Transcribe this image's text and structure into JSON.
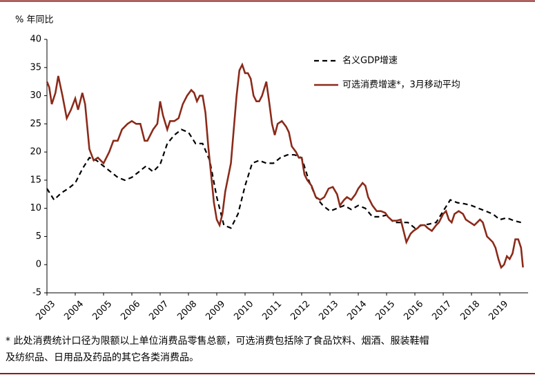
{
  "chart_data": {
    "type": "line",
    "y_label": "% 年同比",
    "xlim": [
      2003,
      2020
    ],
    "ylim": [
      -5,
      40
    ],
    "xticks": [
      2003,
      2004,
      2005,
      2006,
      2007,
      2008,
      2009,
      2010,
      2011,
      2012,
      2013,
      2014,
      2015,
      2016,
      2017,
      2018,
      2019
    ],
    "yticks": [
      -5,
      0,
      5,
      10,
      15,
      20,
      25,
      30,
      35,
      40
    ],
    "grid": false,
    "legend": "top",
    "series": [
      {
        "name": "名义GDP增速",
        "color": "#000000",
        "dash": true,
        "x": [
          2003,
          2003.25,
          2003.5,
          2003.75,
          2004,
          2004.25,
          2004.5,
          2004.75,
          2005,
          2005.25,
          2005.5,
          2005.75,
          2006,
          2006.25,
          2006.5,
          2006.75,
          2007,
          2007.25,
          2007.5,
          2007.75,
          2008,
          2008.25,
          2008.5,
          2008.75,
          2009,
          2009.25,
          2009.5,
          2009.75,
          2010,
          2010.25,
          2010.5,
          2010.75,
          2011,
          2011.25,
          2011.5,
          2011.75,
          2012,
          2012.25,
          2012.5,
          2012.75,
          2013,
          2013.25,
          2013.5,
          2013.75,
          2014,
          2014.25,
          2014.5,
          2014.75,
          2015,
          2015.25,
          2015.5,
          2015.75,
          2016,
          2016.25,
          2016.5,
          2016.75,
          2017,
          2017.25,
          2017.5,
          2017.75,
          2018,
          2018.25,
          2018.5,
          2018.75,
          2019,
          2019.25,
          2019.5,
          2019.75
        ],
        "values": [
          13.5,
          11.5,
          12.7,
          13.5,
          14.5,
          17,
          19,
          18.5,
          17.5,
          16.5,
          15.5,
          15,
          15.5,
          16.5,
          17.5,
          16.5,
          17.8,
          21.5,
          23,
          24,
          23.5,
          21.5,
          21.5,
          18.5,
          12,
          7,
          6.5,
          9,
          14,
          18,
          18.5,
          18,
          18,
          19,
          19.5,
          19.5,
          19,
          15,
          12,
          10.5,
          9.5,
          10,
          10.5,
          9.8,
          10.5,
          10,
          8.5,
          8.5,
          8.8,
          7.5,
          7.5,
          7.5,
          6.5,
          7,
          7.2,
          7.5,
          9.5,
          11.5,
          11,
          10.8,
          10.5,
          10,
          9.5,
          9,
          8,
          8.3,
          7.8,
          7.5
        ]
      },
      {
        "name": "可选消费增速*，3月移动平均",
        "color": "#8b2a1a",
        "dash": false,
        "x": [
          2003,
          2003.08,
          2003.17,
          2003.3,
          2003.4,
          2003.55,
          2003.7,
          2003.85,
          2004,
          2004.1,
          2004.25,
          2004.35,
          2004.5,
          2004.65,
          2004.8,
          2005,
          2005.2,
          2005.35,
          2005.5,
          2005.65,
          2005.85,
          2006,
          2006.15,
          2006.3,
          2006.45,
          2006.55,
          2006.75,
          2006.9,
          2007,
          2007.1,
          2007.25,
          2007.35,
          2007.5,
          2007.65,
          2007.8,
          2007.95,
          2008.1,
          2008.2,
          2008.3,
          2008.4,
          2008.5,
          2008.6,
          2008.7,
          2008.8,
          2008.9,
          2009,
          2009.1,
          2009.2,
          2009.3,
          2009.4,
          2009.5,
          2009.6,
          2009.7,
          2009.8,
          2009.9,
          2010,
          2010.1,
          2010.2,
          2010.3,
          2010.4,
          2010.5,
          2010.6,
          2010.75,
          2010.85,
          2010.95,
          2011.05,
          2011.15,
          2011.3,
          2011.45,
          2011.55,
          2011.65,
          2011.8,
          2011.9,
          2012,
          2012.1,
          2012.2,
          2012.35,
          2012.5,
          2012.65,
          2012.8,
          2012.95,
          2013.1,
          2013.25,
          2013.35,
          2013.5,
          2013.6,
          2013.75,
          2013.9,
          2014,
          2014.15,
          2014.25,
          2014.35,
          2014.5,
          2014.65,
          2014.8,
          2014.95,
          2015.05,
          2015.2,
          2015.35,
          2015.5,
          2015.6,
          2015.7,
          2015.85,
          2015.95,
          2016.1,
          2016.2,
          2016.35,
          2016.45,
          2016.6,
          2016.75,
          2016.85,
          2017,
          2017.1,
          2017.2,
          2017.3,
          2017.4,
          2017.55,
          2017.7,
          2017.8,
          2017.95,
          2018.1,
          2018.2,
          2018.3,
          2018.4,
          2018.55,
          2018.65,
          2018.75,
          2018.85,
          2018.95,
          2019.05,
          2019.15,
          2019.25,
          2019.35,
          2019.45,
          2019.55,
          2019.65,
          2019.75,
          2019.82
        ],
        "values": [
          32.5,
          31.5,
          28.5,
          30.5,
          33.5,
          30,
          26,
          27.5,
          29.5,
          27.5,
          30.5,
          28.5,
          20.5,
          18.5,
          19,
          18,
          20,
          22,
          22,
          24,
          25,
          25.5,
          25,
          25,
          22,
          22,
          24,
          25,
          29,
          26.5,
          24,
          25.5,
          25.5,
          26,
          28.5,
          30,
          31,
          30.5,
          29,
          30,
          30,
          27,
          21,
          16,
          11,
          8,
          7,
          9,
          13,
          15.5,
          18,
          24,
          30,
          34.5,
          35.5,
          34,
          34,
          33,
          30,
          29,
          29,
          30,
          32.5,
          29,
          25,
          23,
          25,
          25.5,
          24.5,
          23.5,
          21,
          20,
          19,
          19,
          16,
          15,
          14,
          12,
          11.5,
          12,
          13.5,
          13.8,
          12.5,
          10.5,
          11.5,
          12,
          11.5,
          12.5,
          13.5,
          14.5,
          14,
          12,
          10.5,
          9.5,
          9.5,
          9.2,
          8.5,
          7.8,
          7.8,
          8,
          6,
          4,
          5.5,
          6,
          6.5,
          7,
          7,
          6.5,
          6,
          7,
          7.5,
          9,
          9.5,
          8,
          7.5,
          9,
          9.5,
          9,
          8,
          7.5,
          7,
          7.5,
          8,
          7.5,
          5,
          4.5,
          4,
          3,
          1,
          -0.5,
          0,
          1.5,
          1,
          2,
          4.5,
          4.5,
          3,
          -0.5
        ]
      }
    ],
    "notes": [
      "* 此处消费统计口径为限额以上单位消费品零售总额，可选消费包括除了食品饮料、烟酒、服装鞋帽",
      "及纺织品、日用品及药品的其它各类消费品。"
    ]
  }
}
